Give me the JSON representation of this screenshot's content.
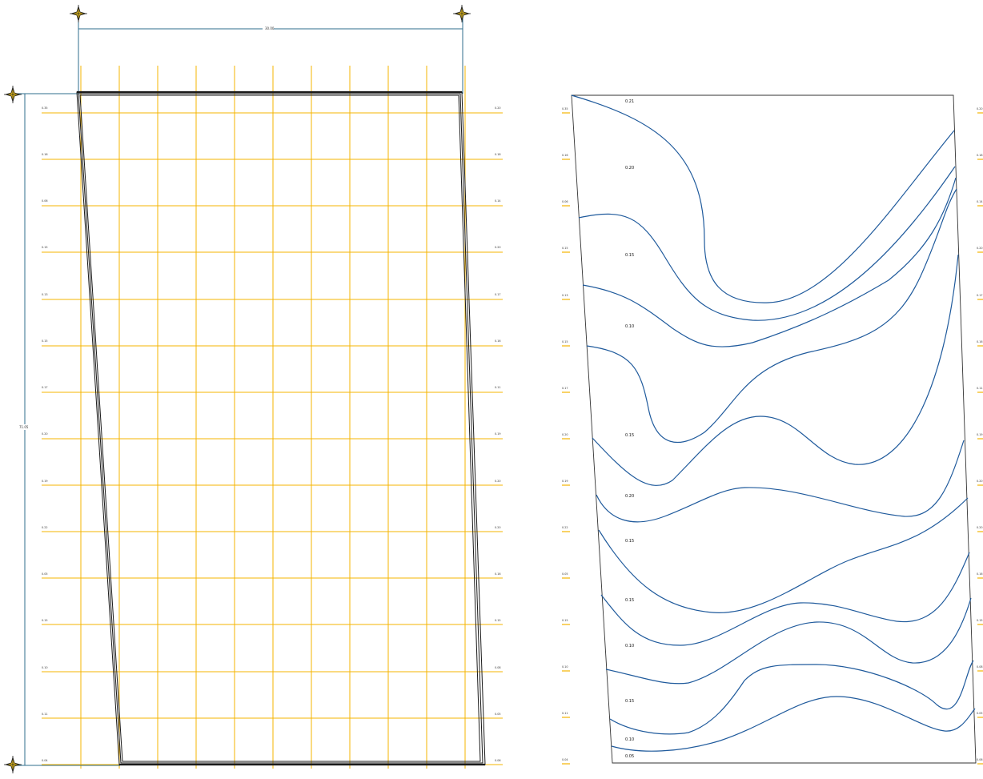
{
  "colors": {
    "grid": "#f5b400",
    "dimension": "#2f6e8e",
    "outline": "#1a1a1a",
    "contour": "#1f5a9c",
    "marker_fill": "#f0c419"
  },
  "icons": {
    "corner_markers": "crosshair-marker-icon"
  },
  "dimensions": {
    "width_label": "30.00",
    "height_label": "71.05"
  },
  "left_elevations": [
    "0.35",
    "0.16",
    "0.06",
    "0.15",
    "0.13",
    "0.15",
    "0.17",
    "0.20",
    "0.19",
    "0.22",
    "0.05",
    "0.15",
    "0.10",
    "0.11",
    "0.04"
  ],
  "right_elevations": [
    "0.20",
    "0.18",
    "0.14",
    "0.20",
    "0.17",
    "0.16",
    "0.11",
    "0.19",
    "0.20",
    "0.20",
    "0.16",
    "0.15",
    "0.08",
    "0.05",
    "0.06"
  ],
  "panel_elevations": [
    "0.35",
    "0.16",
    "0.06",
    "0.15",
    "0.13",
    "0.15",
    "0.17",
    "0.20",
    "0.19",
    "0.22",
    "0.05",
    "0.15",
    "0.10",
    "0.11",
    "0.04"
  ],
  "panel_right_elevations": [
    "0.20",
    "0.18",
    "0.14",
    "0.20",
    "0.17",
    "0.16",
    "0.11",
    "0.19",
    "0.20",
    "0.20",
    "0.16",
    "0.15",
    "0.08",
    "0.05",
    "0.06"
  ],
  "contour_labels": [
    "0.21",
    "0.20",
    "0.15",
    "0.10",
    "0.15",
    "0.20",
    "0.15",
    "0.15",
    "0.10",
    "0.15",
    "0.10",
    "0.05"
  ]
}
